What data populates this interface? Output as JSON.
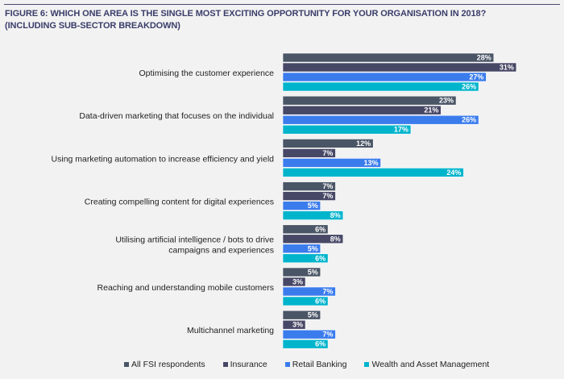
{
  "header": {
    "title_line1": "FIGURE 6: WHICH ONE AREA IS THE SINGLE MOST EXCITING OPPORTUNITY FOR YOUR ORGANISATION IN 2018?",
    "title_line2": "(INCLUDING SUB-SECTOR BREAKDOWN)"
  },
  "chart_data": {
    "type": "bar",
    "orientation": "horizontal",
    "title": "FIGURE 6: WHICH ONE AREA IS THE SINGLE MOST EXCITING OPPORTUNITY FOR YOUR ORGANISATION IN 2018? (INCLUDING SUB-SECTOR BREAKDOWN)",
    "unit": "%",
    "categories": [
      [
        "Optimising the customer experience"
      ],
      [
        "Data-driven marketing that focuses on the individual"
      ],
      [
        "Using marketing automation to increase efficiency and yield"
      ],
      [
        "Creating compelling content for digital experiences"
      ],
      [
        "Utilising artificial intelligence / bots to drive",
        "campaigns and experiences"
      ],
      [
        "Reaching and understanding mobile customers"
      ],
      [
        "Multichannel marketing"
      ]
    ],
    "series": [
      {
        "name": "All FSI respondents",
        "color": "#4a5566",
        "values": [
          28,
          23,
          12,
          7,
          6,
          5,
          5
        ]
      },
      {
        "name": "Insurance",
        "color": "#474766",
        "values": [
          31,
          21,
          7,
          7,
          8,
          3,
          3
        ]
      },
      {
        "name": "Retail Banking",
        "color": "#3b7ced",
        "values": [
          27,
          26,
          13,
          5,
          5,
          7,
          7
        ]
      },
      {
        "name": "Wealth and Asset Management",
        "color": "#00b4cc",
        "values": [
          26,
          17,
          24,
          8,
          6,
          6,
          6
        ]
      }
    ],
    "legend": "bottom",
    "grid": false,
    "data_labels": true
  }
}
